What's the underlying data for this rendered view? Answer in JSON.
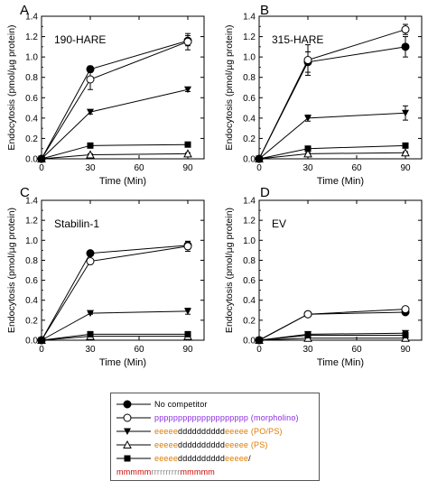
{
  "chart_data": [
    {
      "type": "line",
      "panel_letter": "A",
      "annotation": "190-HARE",
      "xlabel": "Time (Min)",
      "ylabel": "Endocytosis (pmol/µg protein)",
      "xlim": [
        0,
        100
      ],
      "ylim": [
        0,
        1.4
      ],
      "xticks": [
        "0",
        "30",
        "60",
        "90"
      ],
      "yticks": [
        "0.0",
        "0.2",
        "0.4",
        "0.6",
        "0.8",
        "1.0",
        "1.2",
        "1.4"
      ],
      "x": [
        0,
        30,
        90
      ],
      "series": [
        {
          "marker": "filled-circle",
          "values": [
            0,
            0.88,
            1.16
          ],
          "err": [
            0,
            0.03,
            0.05
          ]
        },
        {
          "marker": "open-circle",
          "values": [
            0,
            0.78,
            1.15
          ],
          "err": [
            0,
            0.1,
            0.08
          ]
        },
        {
          "marker": "filled-triangle-down",
          "values": [
            0,
            0.46,
            0.68
          ],
          "err": [
            0,
            0.02,
            0.02
          ]
        },
        {
          "marker": "open-triangle-up",
          "values": [
            0,
            0.04,
            0.05
          ],
          "err": [
            0,
            0.01,
            0.01
          ]
        },
        {
          "marker": "filled-square",
          "values": [
            0,
            0.13,
            0.14
          ],
          "err": [
            0,
            0.02,
            0.02
          ]
        }
      ]
    },
    {
      "type": "line",
      "panel_letter": "B",
      "annotation": "315-HARE",
      "xlabel": "Time (Min)",
      "ylabel": "Endocytosis (pmol/µg protein)",
      "xlim": [
        0,
        100
      ],
      "ylim": [
        0,
        1.4
      ],
      "xticks": [
        "0",
        "30",
        "60",
        "90"
      ],
      "yticks": [
        "0.0",
        "0.2",
        "0.4",
        "0.6",
        "0.8",
        "1.0",
        "1.2",
        "1.4"
      ],
      "x": [
        0,
        30,
        90
      ],
      "series": [
        {
          "marker": "filled-circle",
          "values": [
            0,
            0.95,
            1.1
          ],
          "err": [
            0,
            0.1,
            0.1
          ]
        },
        {
          "marker": "open-circle",
          "values": [
            0,
            0.97,
            1.27
          ],
          "err": [
            0,
            0.15,
            0.05
          ]
        },
        {
          "marker": "filled-triangle-down",
          "values": [
            0,
            0.4,
            0.45
          ],
          "err": [
            0,
            0.03,
            0.07
          ]
        },
        {
          "marker": "open-triangle-up",
          "values": [
            0,
            0.05,
            0.06
          ],
          "err": [
            0,
            0.01,
            0.01
          ]
        },
        {
          "marker": "filled-square",
          "values": [
            0,
            0.1,
            0.13
          ],
          "err": [
            0,
            0.02,
            0.02
          ]
        }
      ]
    },
    {
      "type": "line",
      "panel_letter": "C",
      "annotation": "Stabilin-1",
      "xlabel": "Time (Min)",
      "ylabel": "Endocytosis (pmol/µg protein)",
      "xlim": [
        0,
        100
      ],
      "ylim": [
        0,
        1.4
      ],
      "xticks": [
        "0",
        "30",
        "60",
        "90"
      ],
      "yticks": [
        "0.0",
        "0.2",
        "0.4",
        "0.6",
        "0.8",
        "1.0",
        "1.2",
        "1.4"
      ],
      "x": [
        0,
        30,
        90
      ],
      "series": [
        {
          "marker": "filled-circle",
          "values": [
            0,
            0.87,
            0.95
          ],
          "err": [
            0,
            0.02,
            0.04
          ]
        },
        {
          "marker": "open-circle",
          "values": [
            0,
            0.79,
            0.94
          ],
          "err": [
            0,
            0.02,
            0.05
          ]
        },
        {
          "marker": "filled-triangle-down",
          "values": [
            0,
            0.27,
            0.29
          ],
          "err": [
            0,
            0.01,
            0.03
          ]
        },
        {
          "marker": "open-triangle-up",
          "values": [
            0,
            0.04,
            0.04
          ],
          "err": [
            0,
            0.01,
            0.01
          ]
        },
        {
          "marker": "filled-square",
          "values": [
            0,
            0.06,
            0.06
          ],
          "err": [
            0,
            0.01,
            0.01
          ]
        }
      ]
    },
    {
      "type": "line",
      "panel_letter": "D",
      "annotation": "EV",
      "xlabel": "Time (Min)",
      "ylabel": "Endocytosis (pmol/µg protein)",
      "xlim": [
        0,
        100
      ],
      "ylim": [
        0,
        1.4
      ],
      "xticks": [
        "0",
        "30",
        "60",
        "90"
      ],
      "yticks": [
        "0.0",
        "0.2",
        "0.4",
        "0.6",
        "0.8",
        "1.0",
        "1.2",
        "1.4"
      ],
      "x": [
        0,
        30,
        90
      ],
      "series": [
        {
          "marker": "filled-circle",
          "values": [
            0,
            0.26,
            0.28
          ],
          "err": [
            0,
            0.01,
            0.02
          ]
        },
        {
          "marker": "open-circle",
          "values": [
            0,
            0.26,
            0.31
          ],
          "err": [
            0,
            0.01,
            0.02
          ]
        },
        {
          "marker": "filled-triangle-down",
          "values": [
            0,
            0.06,
            0.07
          ],
          "err": [
            0,
            0.01,
            0.02
          ]
        },
        {
          "marker": "open-triangle-up",
          "values": [
            0,
            0.02,
            0.02
          ],
          "err": [
            0,
            0.005,
            0.005
          ]
        },
        {
          "marker": "filled-square",
          "values": [
            0,
            0.05,
            0.05
          ],
          "err": [
            0,
            0.01,
            0.01
          ]
        }
      ]
    }
  ],
  "legend": {
    "entries": [
      {
        "marker": "filled-circle",
        "parts": [
          {
            "text": "No competitor",
            "color": "#000000"
          }
        ]
      },
      {
        "marker": "open-circle",
        "parts": [
          {
            "text": "pppppppppppppppppppp (morpholino)",
            "color": "#8a2be2"
          }
        ]
      },
      {
        "marker": "filled-triangle-down",
        "parts": [
          {
            "text": "eeeee",
            "color": "#e07b00"
          },
          {
            "text": "dddddddddd",
            "color": "#000000"
          },
          {
            "text": "eeeee (PO/PS)",
            "color": "#e07b00"
          }
        ]
      },
      {
        "marker": "open-triangle-up",
        "parts": [
          {
            "text": "eeeee",
            "color": "#e07b00"
          },
          {
            "text": "dddddddddd",
            "color": "#000000"
          },
          {
            "text": "eeeee (PS)",
            "color": "#e07b00"
          }
        ]
      },
      {
        "marker": "filled-square",
        "parts": [
          {
            "text": "eeeee",
            "color": "#e07b00"
          },
          {
            "text": "dddddddddd",
            "color": "#000000"
          },
          {
            "text": "eeeee",
            "color": "#e07b00"
          },
          {
            "text": "/",
            "color": "#000000"
          }
        ]
      },
      {
        "marker": "none",
        "parts": [
          {
            "text": "mmmmm",
            "color": "#cc0000"
          },
          {
            "text": "rrrrrrrrrr",
            "color": "#888888"
          },
          {
            "text": "mmmmm",
            "color": "#cc0000"
          }
        ]
      }
    ]
  }
}
